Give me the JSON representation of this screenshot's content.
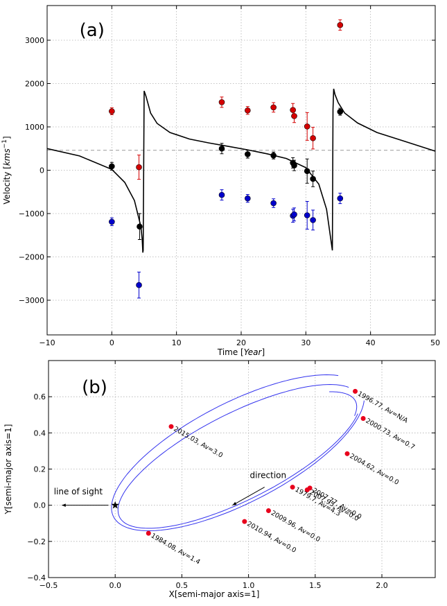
{
  "chart_data": [
    {
      "type": "scatter",
      "panel_label": "(a)",
      "xlabel": "Time [Year]",
      "ylabel": "Velocity [kms^-1]",
      "xlim": [
        -10,
        50
      ],
      "ylim": [
        -3800,
        3800
      ],
      "xticks": [
        -10,
        0,
        10,
        20,
        30,
        40,
        50
      ],
      "yticks": [
        -3000,
        -2000,
        -1000,
        0,
        1000,
        2000,
        3000
      ],
      "xtick_labels": [
        "−10",
        "0",
        "10",
        "20",
        "30",
        "40",
        "50"
      ],
      "ytick_labels": [
        "−3000",
        "−2000",
        "−1000",
        "0",
        "1000",
        "2000",
        "3000"
      ],
      "grid": true,
      "reference_line_y": 460,
      "series": [
        {
          "color": "#d40000",
          "points": [
            {
              "x": 0,
              "y": 1360,
              "err": 80
            },
            {
              "x": 4.2,
              "y": 70,
              "err": 280
            },
            {
              "x": 17,
              "y": 1570,
              "err": 120
            },
            {
              "x": 21,
              "y": 1380,
              "err": 90
            },
            {
              "x": 25,
              "y": 1450,
              "err": 110
            },
            {
              "x": 28,
              "y": 1390,
              "err": 150
            },
            {
              "x": 28.2,
              "y": 1250,
              "err": 150
            },
            {
              "x": 30.2,
              "y": 1010,
              "err": 320
            },
            {
              "x": 31.1,
              "y": 740,
              "err": 250
            },
            {
              "x": 35.3,
              "y": 3350,
              "err": 120
            }
          ]
        },
        {
          "color": "#0000cc",
          "points": [
            {
              "x": 0,
              "y": -1190,
              "err": 90
            },
            {
              "x": 4.2,
              "y": -2650,
              "err": 300
            },
            {
              "x": 17,
              "y": -570,
              "err": 120
            },
            {
              "x": 21,
              "y": -650,
              "err": 90
            },
            {
              "x": 25,
              "y": -760,
              "err": 100
            },
            {
              "x": 28,
              "y": -1050,
              "err": 150
            },
            {
              "x": 28.2,
              "y": -1020,
              "err": 150
            },
            {
              "x": 30.2,
              "y": -1040,
              "err": 320
            },
            {
              "x": 31.1,
              "y": -1150,
              "err": 230
            },
            {
              "x": 35.3,
              "y": -650,
              "err": 120
            }
          ]
        },
        {
          "color": "#000000",
          "points": [
            {
              "x": 0,
              "y": 90,
              "err": 90
            },
            {
              "x": 4.3,
              "y": -1300,
              "err": 300
            },
            {
              "x": 17,
              "y": 500,
              "err": 120
            },
            {
              "x": 21,
              "y": 370,
              "err": 90
            },
            {
              "x": 25,
              "y": 340,
              "err": 80
            },
            {
              "x": 28,
              "y": 170,
              "err": 120
            },
            {
              "x": 28.2,
              "y": 110,
              "err": 120
            },
            {
              "x": 30.2,
              "y": -20,
              "err": 280
            },
            {
              "x": 31.1,
              "y": -200,
              "err": 180
            },
            {
              "x": 35.3,
              "y": 1350,
              "err": 80
            }
          ]
        }
      ],
      "model_curve": {
        "color": "#000000",
        "period": 29.4,
        "t_minimum": 4.8,
        "x": [
          -10,
          -5,
          0,
          2,
          3.5,
          4.5,
          4.7,
          4.8,
          4.85,
          5.0,
          5.3,
          6,
          7,
          9,
          12,
          15,
          18,
          21,
          24,
          27,
          30,
          32,
          33.2,
          34.1,
          34.2,
          34.3,
          34.5,
          35,
          36,
          38,
          41,
          45,
          50
        ],
        "y": [
          500,
          330,
          20,
          -280,
          -700,
          -1300,
          -1600,
          -1900,
          -1850,
          1830,
          1700,
          1320,
          1080,
          870,
          720,
          630,
          550,
          470,
          380,
          270,
          60,
          -320,
          -900,
          -1850,
          1400,
          1880,
          1750,
          1560,
          1320,
          1090,
          870,
          680,
          440
        ]
      }
    },
    {
      "type": "scatter",
      "panel_label": "(b)",
      "xlabel": "X[semi-major axis=1]",
      "ylabel": "Y[semi-major axis=1]",
      "xlim": [
        -0.5,
        2.4
      ],
      "ylim": [
        -0.4,
        0.8
      ],
      "xticks": [
        -0.5,
        0.0,
        0.5,
        1.0,
        1.5,
        2.0
      ],
      "yticks": [
        -0.4,
        -0.2,
        0.0,
        0.2,
        0.4,
        0.6
      ],
      "xtick_labels": [
        "−0.5",
        "0.0",
        "0.5",
        "1.0",
        "1.5",
        "2.0"
      ],
      "ytick_labels": [
        "−0.4",
        "−0.2",
        "0.0",
        "0.2",
        "0.4",
        "0.6"
      ],
      "grid": true,
      "orbit_color": "#3333ee",
      "star": {
        "x": 0.0,
        "y": 0.0
      },
      "line_of_sight": {
        "text": "line of sight",
        "from": [
          -0.05,
          0.0
        ],
        "to": [
          -0.4,
          0.0
        ]
      },
      "direction": {
        "text": "direction",
        "from": [
          1.12,
          0.1
        ],
        "to": [
          0.88,
          -0.0
        ]
      },
      "epochs": [
        {
          "x": 0.42,
          "y": 0.435,
          "label": "2015.03, Av=3.0"
        },
        {
          "x": 1.8,
          "y": 0.63,
          "label": "1996.77, Av=N/A"
        },
        {
          "x": 1.86,
          "y": 0.48,
          "label": "2000.73, Av=0.7"
        },
        {
          "x": 1.74,
          "y": 0.285,
          "label": "2004.62, Av=0.0"
        },
        {
          "x": 1.46,
          "y": 0.095,
          "label": "2007.77, Av=0.0"
        },
        {
          "x": 1.44,
          "y": 0.085,
          "label": "2007.95, Av=0.0"
        },
        {
          "x": 1.33,
          "y": 0.1,
          "label": "1979.7, Av=4.3"
        },
        {
          "x": 1.15,
          "y": -0.03,
          "label": "2009.96, Av=0.0"
        },
        {
          "x": 0.97,
          "y": -0.09,
          "label": "2010.94, Av=0.0"
        },
        {
          "x": 0.25,
          "y": -0.155,
          "label": "1984.08, Av=1.4"
        }
      ]
    }
  ]
}
